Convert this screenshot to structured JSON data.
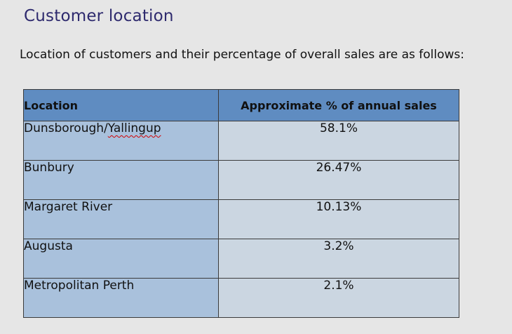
{
  "heading": "Customer location",
  "intro_text": "Location of customers and their percentage of overall sales are as follows:",
  "table": {
    "headers": [
      "Location",
      "Approximate % of annual sales"
    ],
    "rows": [
      {
        "location_prefix": "Dunsborough/",
        "location_flagged": "Yallingup",
        "percent": "58.1%"
      },
      {
        "location": "Bunbury",
        "percent": "26.47%"
      },
      {
        "location": "Margaret River",
        "percent": "10.13%"
      },
      {
        "location": "Augusta",
        "percent": "3.2%"
      },
      {
        "location": "Metropolitan Perth",
        "percent": "2.1%"
      }
    ]
  },
  "colors": {
    "heading": "#2e2a6e",
    "header_fill": "#5f8cc1",
    "location_column_fill": "#a9c1dc",
    "value_column_fill": "#cbd6e1",
    "spellcheck_underline": "#d10000"
  }
}
